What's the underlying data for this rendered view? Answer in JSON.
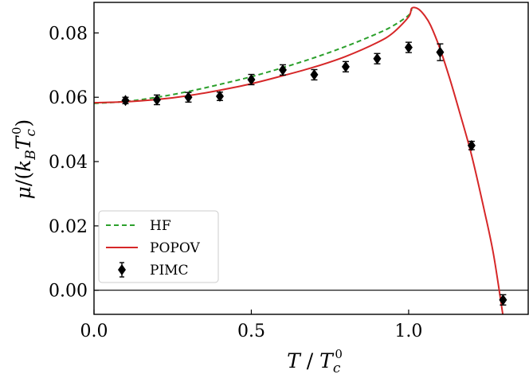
{
  "chart_data": {
    "type": "line",
    "xlabel": "T / T_c^0",
    "ylabel": "μ / (k_B T_c^0)",
    "xlim": [
      0.0,
      1.38
    ],
    "ylim": [
      -0.0075,
      0.0895
    ],
    "xticks": [
      0.0,
      0.5,
      1.0
    ],
    "xtick_labels": [
      "0.0",
      "0.5",
      "1.0"
    ],
    "yticks": [
      0.0,
      0.02,
      0.04,
      0.06,
      0.08
    ],
    "ytick_labels": [
      "0.00",
      "0.02",
      "0.04",
      "0.06",
      "0.08"
    ],
    "reference_line_y": 0.0,
    "grid": false,
    "legend_position": "lower-left",
    "series": [
      {
        "name": "HF",
        "style": "dashed",
        "color": "#2ca02c",
        "x": [
          0.0,
          0.1,
          0.2,
          0.3,
          0.4,
          0.5,
          0.6,
          0.7,
          0.8,
          0.9,
          0.95,
          1.0,
          1.01
        ],
        "y": [
          0.0581,
          0.0587,
          0.06,
          0.0618,
          0.064,
          0.0664,
          0.0692,
          0.0723,
          0.0758,
          0.0798,
          0.0822,
          0.0855,
          0.0877
        ]
      },
      {
        "name": "POPOV",
        "style": "solid",
        "color": "#d62728",
        "x": [
          0.0,
          0.1,
          0.2,
          0.3,
          0.4,
          0.5,
          0.6,
          0.7,
          0.8,
          0.9,
          0.95,
          1.0,
          1.01,
          1.03,
          1.05,
          1.07,
          1.1,
          1.13,
          1.16,
          1.2,
          1.24,
          1.27,
          1.3
        ],
        "y": [
          0.0583,
          0.0586,
          0.0593,
          0.0605,
          0.0622,
          0.0642,
          0.0667,
          0.0694,
          0.0727,
          0.077,
          0.08,
          0.085,
          0.0877,
          0.0875,
          0.0855,
          0.0823,
          0.075,
          0.066,
          0.056,
          0.042,
          0.025,
          0.011,
          -0.008
        ]
      },
      {
        "name": "PIMC",
        "style": "markers",
        "color": "#000000",
        "x": [
          0.1,
          0.2,
          0.3,
          0.4,
          0.5,
          0.6,
          0.7,
          0.8,
          0.9,
          1.0,
          1.1,
          1.2,
          1.3
        ],
        "y": [
          0.059,
          0.0592,
          0.06,
          0.0603,
          0.0655,
          0.0685,
          0.067,
          0.0695,
          0.072,
          0.0755,
          0.074,
          0.045,
          -0.003
        ],
        "yerr": [
          0.001,
          0.0015,
          0.0015,
          0.0013,
          0.0016,
          0.0016,
          0.0016,
          0.0016,
          0.0016,
          0.0016,
          0.0026,
          0.0013,
          0.0016
        ]
      }
    ]
  }
}
